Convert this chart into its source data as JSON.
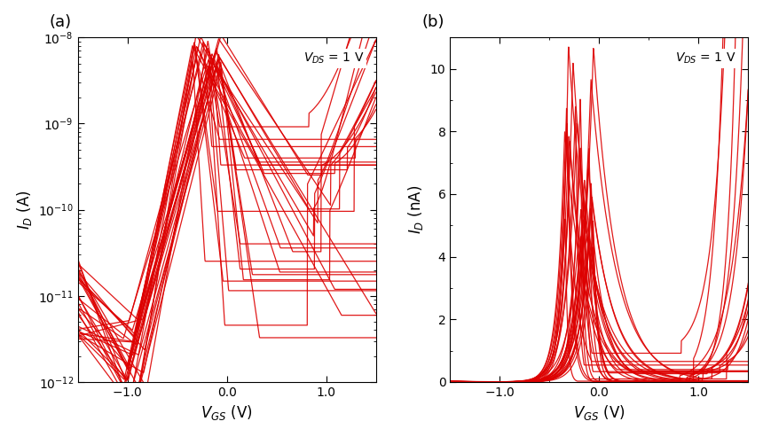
{
  "n_curves": 30,
  "color": "#dd0000",
  "linewidth": 0.9,
  "alpha": 0.9,
  "panel_a": {
    "ylabel": "$I_D$ (A)",
    "xlabel": "$V_{GS}$ (V)",
    "annotation": "$V_{DS}$ = 1 V",
    "xlim": [
      -1.5,
      1.5
    ],
    "ylim_log": [
      -12,
      -8
    ],
    "xticks": [
      -1.0,
      0.0,
      1.0
    ],
    "label": "(a)"
  },
  "panel_b": {
    "ylabel": "$I_D$ (nA)",
    "xlabel": "$V_{GS}$ (V)",
    "annotation": "$V_{DS}$ = 1 V",
    "xlim": [
      -1.5,
      1.5
    ],
    "ylim": [
      0,
      11
    ],
    "yticks": [
      0,
      2,
      4,
      6,
      8,
      10
    ],
    "xticks": [
      -1.0,
      0.0,
      1.0
    ],
    "label": "(b)"
  }
}
